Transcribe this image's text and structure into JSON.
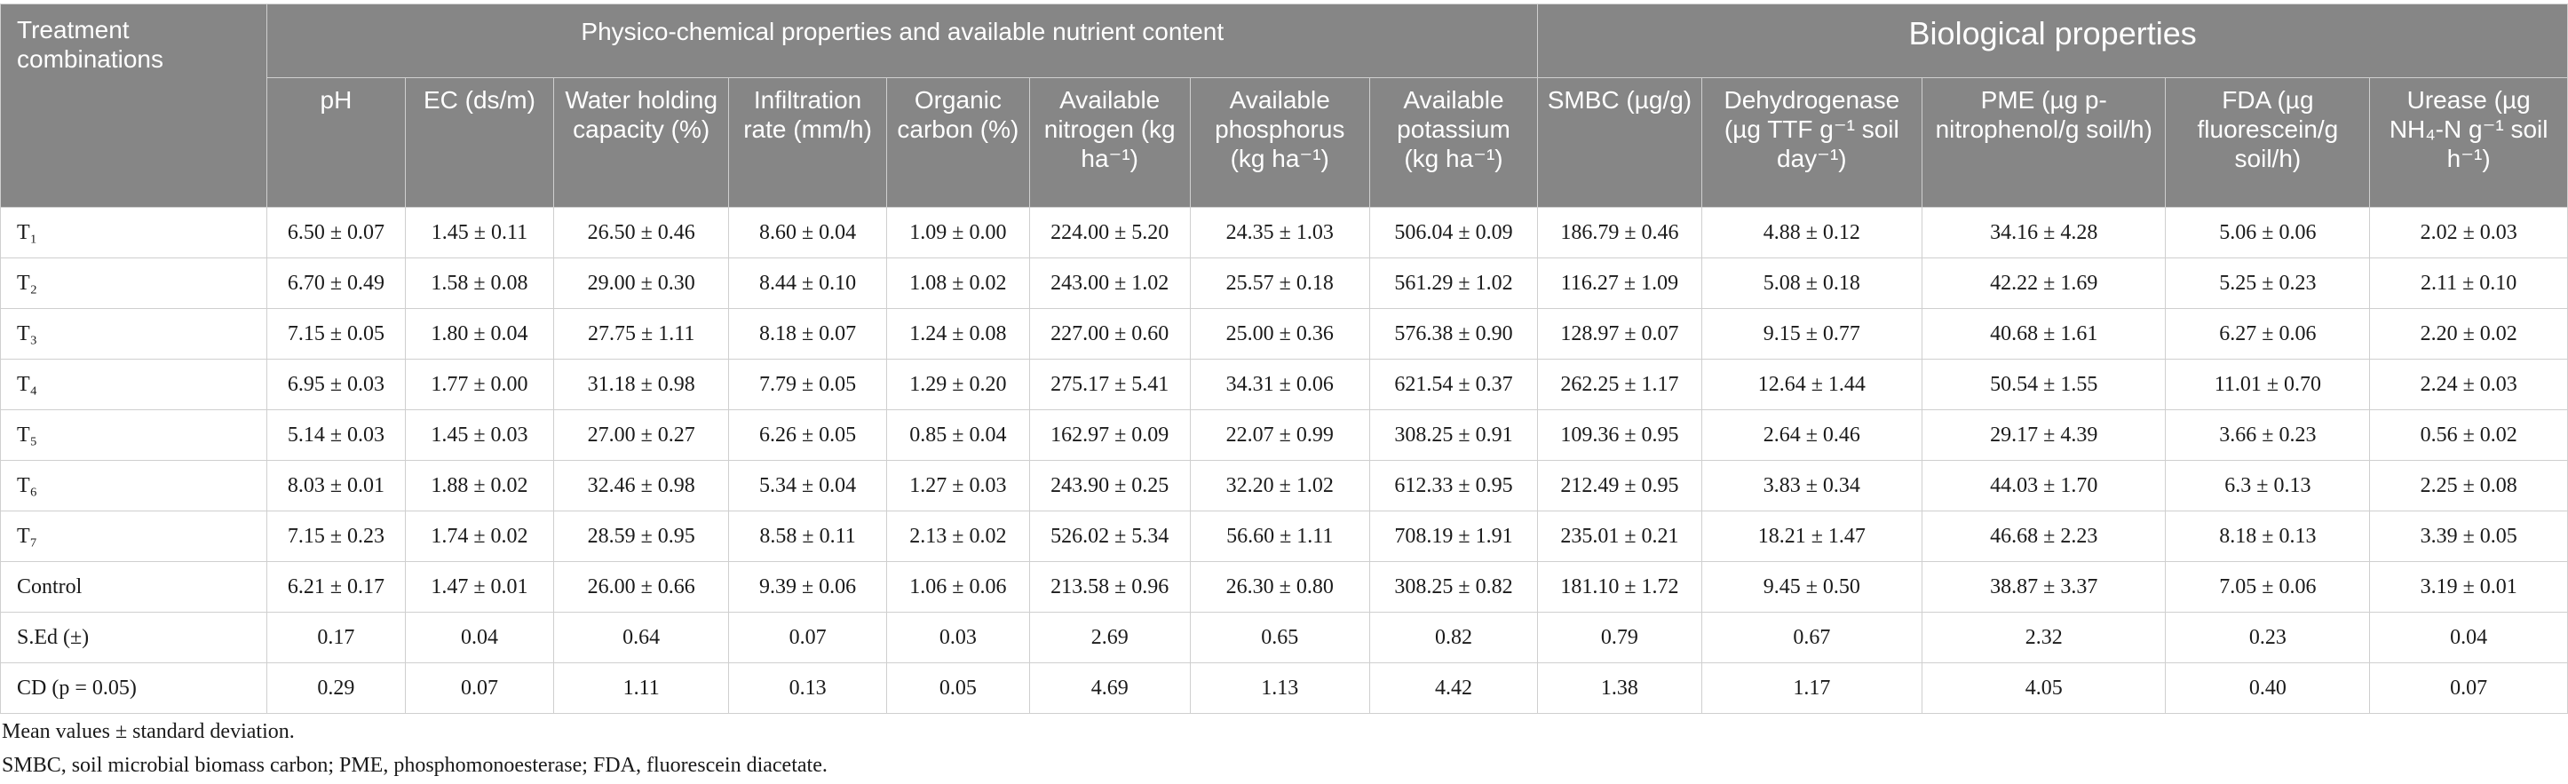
{
  "table": {
    "corner_header": "Treatment combinations",
    "group_headers": [
      "Physico-chemical properties and available nutrient content",
      "Biological properties"
    ],
    "columns": [
      "pH",
      "EC (ds/m)",
      "Water holding capacity (%)",
      "Infiltration rate (mm/h)",
      "Organic carbon (%)",
      "Available nitrogen (kg ha⁻¹)",
      "Available phosphorus (kg ha⁻¹)",
      "Available potassium (kg ha⁻¹)",
      "SMBC (µg/g)",
      "Dehydrogenase (µg TTF g⁻¹ soil day⁻¹)",
      "PME (µg p-nitrophenol/g soil/h)",
      "FDA (µg fluorescein/g soil/h)",
      "Urease (µg NH₄-N g⁻¹ soil h⁻¹)"
    ],
    "rows": [
      {
        "label": "T₁",
        "values": [
          "6.50 ± 0.07",
          "1.45 ± 0.11",
          "26.50 ± 0.46",
          "8.60 ± 0.04",
          "1.09 ± 0.00",
          "224.00 ± 5.20",
          "24.35 ± 1.03",
          "506.04 ± 0.09",
          "186.79 ± 0.46",
          "4.88 ± 0.12",
          "34.16 ± 4.28",
          "5.06 ± 0.06",
          "2.02 ± 0.03"
        ]
      },
      {
        "label": "T₂",
        "values": [
          "6.70 ± 0.49",
          "1.58 ± 0.08",
          "29.00 ± 0.30",
          "8.44 ± 0.10",
          "1.08 ± 0.02",
          "243.00 ± 1.02",
          "25.57 ± 0.18",
          "561.29 ± 1.02",
          "116.27 ± 1.09",
          "5.08 ± 0.18",
          "42.22 ± 1.69",
          "5.25 ± 0.23",
          "2.11 ± 0.10"
        ]
      },
      {
        "label": "T₃",
        "values": [
          "7.15 ± 0.05",
          "1.80 ± 0.04",
          "27.75 ± 1.11",
          "8.18 ± 0.07",
          "1.24 ± 0.08",
          "227.00 ± 0.60",
          "25.00 ± 0.36",
          "576.38 ± 0.90",
          "128.97 ± 0.07",
          "9.15 ± 0.77",
          "40.68 ± 1.61",
          "6.27 ± 0.06",
          "2.20 ± 0.02"
        ]
      },
      {
        "label": "T₄",
        "values": [
          "6.95 ± 0.03",
          "1.77 ± 0.00",
          "31.18 ± 0.98",
          "7.79 ± 0.05",
          "1.29 ± 0.20",
          "275.17 ± 5.41",
          "34.31 ± 0.06",
          "621.54 ± 0.37",
          "262.25 ± 1.17",
          "12.64 ± 1.44",
          "50.54 ± 1.55",
          "11.01 ± 0.70",
          "2.24 ± 0.03"
        ]
      },
      {
        "label": "T₅",
        "values": [
          "5.14 ± 0.03",
          "1.45 ± 0.03",
          "27.00 ± 0.27",
          "6.26 ± 0.05",
          "0.85 ± 0.04",
          "162.97 ± 0.09",
          "22.07 ± 0.99",
          "308.25 ± 0.91",
          "109.36 ± 0.95",
          "2.64 ± 0.46",
          "29.17 ± 4.39",
          "3.66 ± 0.23",
          "0.56 ± 0.02"
        ]
      },
      {
        "label": "T₆",
        "values": [
          "8.03 ± 0.01",
          "1.88 ± 0.02",
          "32.46 ± 0.98",
          "5.34 ± 0.04",
          "1.27 ± 0.03",
          "243.90 ± 0.25",
          "32.20 ± 1.02",
          "612.33 ± 0.95",
          "212.49 ± 0.95",
          "3.83 ± 0.34",
          "44.03 ± 1.70",
          "6.3 ± 0.13",
          "2.25 ± 0.08"
        ]
      },
      {
        "label": "T₇",
        "values": [
          "7.15 ± 0.23",
          "1.74 ± 0.02",
          "28.59 ± 0.95",
          "8.58 ± 0.11",
          "2.13 ± 0.02",
          "526.02 ± 5.34",
          "56.60 ± 1.11",
          "708.19 ± 1.91",
          "235.01 ± 0.21",
          "18.21 ± 1.47",
          "46.68 ± 2.23",
          "8.18 ± 0.13",
          "3.39 ± 0.05"
        ]
      },
      {
        "label": "Control",
        "values": [
          "6.21 ± 0.17",
          "1.47 ± 0.01",
          "26.00 ± 0.66",
          "9.39 ± 0.06",
          "1.06 ± 0.06",
          "213.58 ± 0.96",
          "26.30 ± 0.80",
          "308.25 ± 0.82",
          "181.10 ± 1.72",
          "9.45 ± 0.50",
          "38.87 ± 3.37",
          "7.05 ± 0.06",
          "3.19 ± 0.01"
        ]
      },
      {
        "label": "S.Ed (±)",
        "values": [
          "0.17",
          "0.04",
          "0.64",
          "0.07",
          "0.03",
          "2.69",
          "0.65",
          "0.82",
          "0.79",
          "0.67",
          "2.32",
          "0.23",
          "0.04"
        ]
      },
      {
        "label": "CD (p = 0.05)",
        "values": [
          "0.29",
          "0.07",
          "1.11",
          "0.13",
          "0.05",
          "4.69",
          "1.13",
          "4.42",
          "1.38",
          "1.17",
          "4.05",
          "0.40",
          "0.07"
        ]
      }
    ]
  },
  "notes": [
    "Mean values ± standard deviation.",
    "SMBC, soil microbial biomass carbon; PME, phosphomonoesterase; FDA, fluorescein diacetate."
  ]
}
